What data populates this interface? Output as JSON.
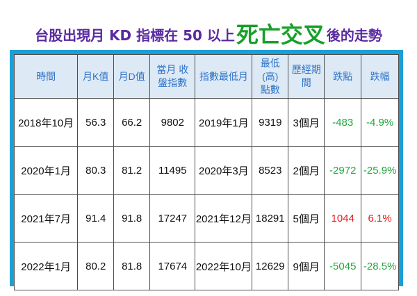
{
  "title": {
    "part1": "台股出現月 KD 指標在 50 以上",
    "highlight": "死亡交叉",
    "part2": "後的走勢"
  },
  "colors": {
    "title": "#5a2aa0",
    "highlight": "#18a02a",
    "frame": "#1a9fd6",
    "header_bg": "#dde9f5",
    "header_text": "#2d73c8",
    "gain": "#e01b1b",
    "loss": "#1fa83a"
  },
  "table": {
    "headers": [
      "時間",
      "月K值",
      "月D值",
      "當月 收盤指數",
      "指數最低月",
      "最低(高) 點數",
      "歷經期間",
      "跌點",
      "跌幅"
    ],
    "rows": [
      [
        "2018年10月",
        "56.3",
        "66.2",
        "9802",
        "2019年1月",
        "9319",
        "3個月",
        "-483",
        "-4.9%"
      ],
      [
        "2020年1月",
        "80.3",
        "81.2",
        "11495",
        "2020年3月",
        "8523",
        "2個月",
        "-2972",
        "-25.9%"
      ],
      [
        "2021年7月",
        "91.4",
        "91.8",
        "17247",
        "2021年12月",
        "18291",
        "5個月",
        "1044",
        "6.1%"
      ],
      [
        "2022年1月",
        "80.2",
        "81.8",
        "17674",
        "2022年10月",
        "12629",
        "9個月",
        "-5045",
        "-28.5%"
      ]
    ]
  }
}
